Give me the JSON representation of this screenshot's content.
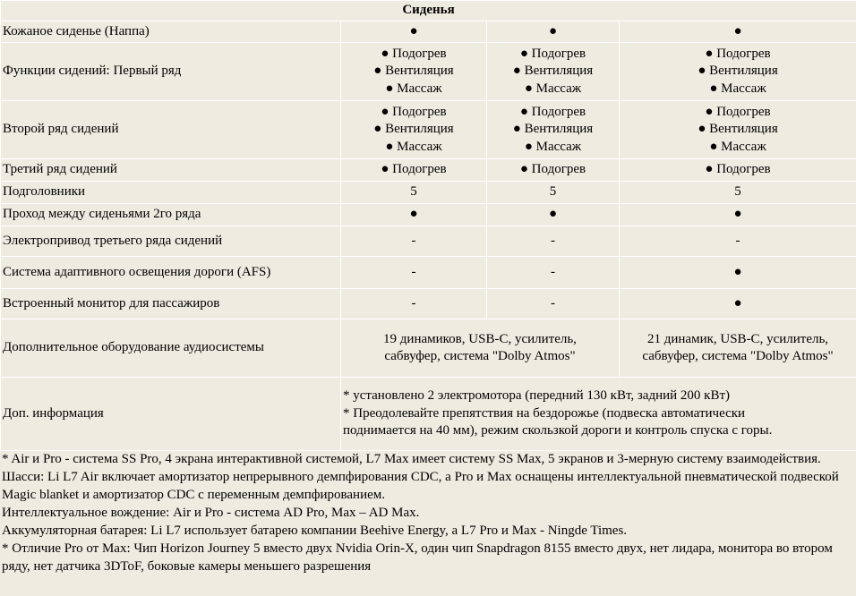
{
  "title": "Сиденья",
  "rows": [
    {
      "label": "Кожаное сиденье (Наппа)",
      "values": [
        "●",
        "●",
        "●"
      ]
    },
    {
      "label": "Функции сидений: Первый ряд",
      "values": [
        [
          "● Подогрев",
          "● Вентиляция",
          "● Массаж"
        ],
        [
          "● Подогрев",
          "● Вентиляция",
          "● Массаж"
        ],
        [
          "● Подогрев",
          "● Вентиляция",
          "● Массаж"
        ]
      ]
    },
    {
      "label": "Второй ряд сидений",
      "values": [
        [
          "● Подогрев",
          "● Вентиляция",
          "● Массаж"
        ],
        [
          "● Подогрев",
          "● Вентиляция",
          "● Массаж"
        ],
        [
          "● Подогрев",
          "● Вентиляция",
          "● Массаж"
        ]
      ]
    },
    {
      "label": "Третий ряд сидений",
      "values": [
        "● Подогрев",
        "● Подогрев",
        "● Подогрев"
      ]
    },
    {
      "label": "Подголовники",
      "values": [
        "5",
        "5",
        "5"
      ]
    },
    {
      "label": "Проход между сиденьями 2го ряда",
      "values": [
        "●",
        "●",
        "●"
      ]
    },
    {
      "label": "Электропривод третьего ряда сидений",
      "values": [
        "-",
        "-",
        "-"
      ]
    },
    {
      "label": "Система адаптивного освещения дороги (AFS)",
      "values": [
        "-",
        "-",
        "●"
      ]
    },
    {
      "label": "Встроенный монитор для пассажиров",
      "values": [
        "-",
        "-",
        "●"
      ]
    }
  ],
  "audio": {
    "label": "Дополнительное оборудование аудиосистемы",
    "left": [
      "19 динамиков, USB-C, усилитель,",
      "сабвуфер, система \"Dolby Atmos\""
    ],
    "right": [
      "21 динамик, USB-C, усилитель,",
      "сабвуфер, система \"Dolby Atmos\""
    ]
  },
  "info": {
    "label": "Доп. информация",
    "lines": [
      "* установлено 2 электромотора (передний 130 кВт, задний 200 кВт)",
      "* Преодолевайте препятствия на бездорожье (подвеска автоматически",
      "поднимается на 40 мм), режим скользкой дороги и контроль спуска с горы."
    ]
  },
  "footnotes": [
    "* Air и Pro - система SS Pro, 4 экрана интерактивной системой, L7 Max имеет систему SS Max, 5 экранов и 3-мерную систему взаимодействия.",
    "Шасси: Li L7 Air включает амортизатор непрерывного демпфирования CDC, а Pro и Max оснащены интеллектуальной пневматической подвеской Magic blanket и амортизатор CDC с переменным демпфированием.",
    "Интеллектуальное вождение: Air и Pro - система AD Pro, Max – AD Max.",
    "Аккумуляторная батарея: Li L7 использует батарею компании Beehive Energy, а L7 Pro и Max - Ningde Times.",
    "*  Отличие Pro от Max: Чип Horizon Journey 5 вместо двух Nvidia Orin-X, один чип Snapdragon 8155 вместо двух, нет лидара, монитора во втором ряду, нет датчика 3DToF, боковые камеры меньшего разрешения"
  ]
}
